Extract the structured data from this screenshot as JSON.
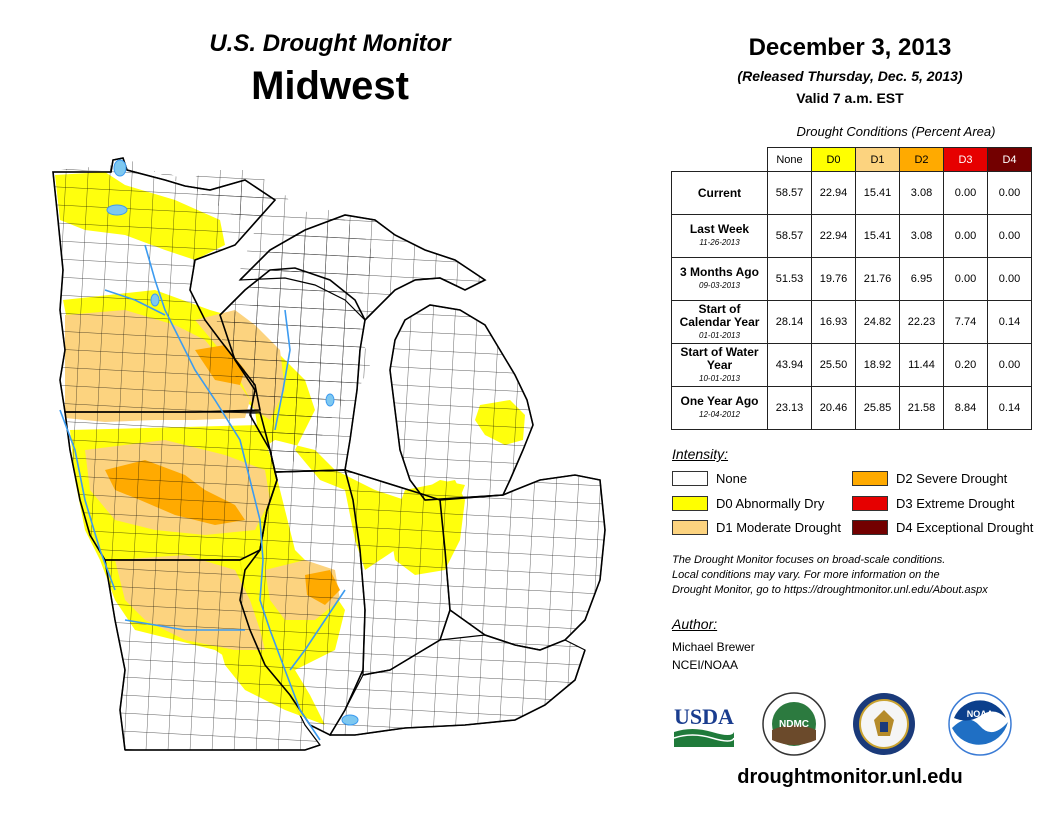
{
  "header": {
    "subtitle": "U.S. Drought Monitor",
    "title": "Midwest",
    "date": "December 3, 2013",
    "released": "(Released Thursday, Dec. 5, 2013)",
    "valid": "Valid 7 a.m. EST"
  },
  "conditions": {
    "caption": "Drought Conditions (Percent Area)",
    "columns": [
      {
        "label": "None",
        "color": "#ffffff",
        "text_color": "#000000"
      },
      {
        "label": "D0",
        "color": "#ffff00",
        "text_color": "#000000"
      },
      {
        "label": "D1",
        "color": "#fcd37f",
        "text_color": "#000000"
      },
      {
        "label": "D2",
        "color": "#ffaa00",
        "text_color": "#000000"
      },
      {
        "label": "D3",
        "color": "#e60000",
        "text_color": "#ffffff"
      },
      {
        "label": "D4",
        "color": "#730000",
        "text_color": "#ffffff"
      }
    ],
    "rows": [
      {
        "label": "Current",
        "date": "",
        "values": [
          "58.57",
          "22.94",
          "15.41",
          "3.08",
          "0.00",
          "0.00"
        ]
      },
      {
        "label": "Last Week",
        "date": "11-26-2013",
        "values": [
          "58.57",
          "22.94",
          "15.41",
          "3.08",
          "0.00",
          "0.00"
        ]
      },
      {
        "label": "3 Months Ago",
        "date": "09-03-2013",
        "values": [
          "51.53",
          "19.76",
          "21.76",
          "6.95",
          "0.00",
          "0.00"
        ]
      },
      {
        "label": "Start of Calendar Year",
        "date": "01-01-2013",
        "values": [
          "28.14",
          "16.93",
          "24.82",
          "22.23",
          "7.74",
          "0.14"
        ]
      },
      {
        "label": "Start of Water Year",
        "date": "10-01-2013",
        "values": [
          "43.94",
          "25.50",
          "18.92",
          "11.44",
          "0.20",
          "0.00"
        ]
      },
      {
        "label": "One Year Ago",
        "date": "12-04-2012",
        "values": [
          "23.13",
          "20.46",
          "25.85",
          "21.58",
          "8.84",
          "0.14"
        ]
      }
    ]
  },
  "legend": {
    "title": "Intensity:",
    "items": [
      {
        "label": "None",
        "color": "#ffffff"
      },
      {
        "label": "D0 Abnormally Dry",
        "color": "#ffff00"
      },
      {
        "label": "D1 Moderate Drought",
        "color": "#fcd37f"
      },
      {
        "label": "D2 Severe Drought",
        "color": "#ffaa00"
      },
      {
        "label": "D3 Extreme Drought",
        "color": "#e60000"
      },
      {
        "label": "D4 Exceptional Drought",
        "color": "#730000"
      }
    ]
  },
  "note": {
    "line1": "The Drought Monitor focuses on broad-scale conditions.",
    "line2": "Local conditions may vary. For more information on the",
    "line3": "Drought Monitor, go to https://droughtmonitor.unl.edu/About.aspx"
  },
  "author": {
    "title": "Author:",
    "name": "Michael Brewer",
    "org": "NCEI/NOAA"
  },
  "logos": {
    "usda": "USDA",
    "ndmc": "NDMC",
    "noaa": "NOAA"
  },
  "website": "droughtmonitor.unl.edu",
  "map": {
    "region": "Midwest",
    "states": [
      "Minnesota",
      "Wisconsin",
      "Michigan",
      "Iowa",
      "Illinois",
      "Indiana",
      "Ohio",
      "Missouri",
      "Kentucky"
    ]
  }
}
